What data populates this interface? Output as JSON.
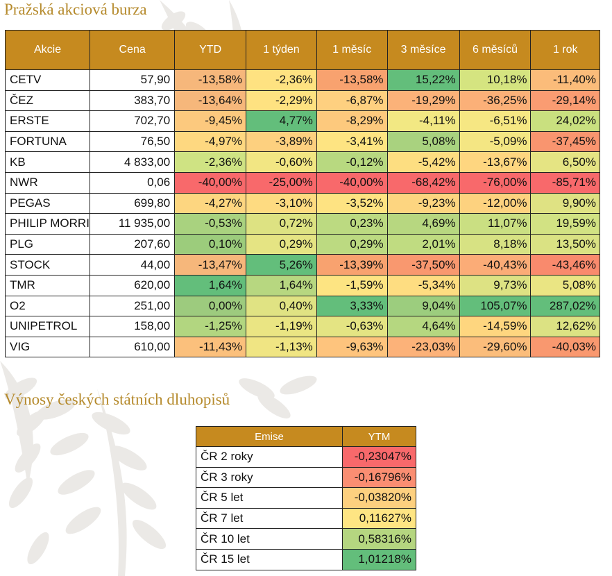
{
  "stocks": {
    "title": "Pražská akciová burza",
    "headers": [
      "Akcie",
      "Cena",
      "YTD",
      "1 týden",
      "1 měsíc",
      "3 měsíce",
      "6 měsíců",
      "1 rok"
    ],
    "rows": [
      {
        "name": "CETV",
        "price": "57,90",
        "cells": [
          {
            "v": "-13,58%",
            "c": "#f6b77b"
          },
          {
            "v": "-2,36%",
            "c": "#fee281"
          },
          {
            "v": "-13,58%",
            "c": "#f8a26f"
          },
          {
            "v": "15,22%",
            "c": "#63be7b"
          },
          {
            "v": "10,18%",
            "c": "#d5e480"
          },
          {
            "v": "-11,40%",
            "c": "#fbbc7a"
          }
        ]
      },
      {
        "name": "ČEZ",
        "price": "383,70",
        "cells": [
          {
            "v": "-13,64%",
            "c": "#f6b77b"
          },
          {
            "v": "-2,29%",
            "c": "#fee281"
          },
          {
            "v": "-6,87%",
            "c": "#fed080"
          },
          {
            "v": "-19,29%",
            "c": "#fbb279"
          },
          {
            "v": "-36,25%",
            "c": "#fbb078"
          },
          {
            "v": "-29,14%",
            "c": "#fa9c72"
          }
        ]
      },
      {
        "name": "ERSTE",
        "price": "702,70",
        "cells": [
          {
            "v": "-9,45%",
            "c": "#fcc97e"
          },
          {
            "v": "4,77%",
            "c": "#63be7b"
          },
          {
            "v": "-8,29%",
            "c": "#fdc97d"
          },
          {
            "v": "-4,11%",
            "c": "#f2e883"
          },
          {
            "v": "-6,51%",
            "c": "#f6e783"
          },
          {
            "v": "24,02%",
            "c": "#c9e07f"
          }
        ]
      },
      {
        "name": "FORTUNA",
        "price": "76,50",
        "cells": [
          {
            "v": "-4,97%",
            "c": "#fed880"
          },
          {
            "v": "-3,89%",
            "c": "#fdd07f"
          },
          {
            "v": "-3,41%",
            "c": "#fee482"
          },
          {
            "v": "5,08%",
            "c": "#a9d27f"
          },
          {
            "v": "-5,09%",
            "c": "#f4e683"
          },
          {
            "v": "-37,45%",
            "c": "#f9956f"
          }
        ]
      },
      {
        "name": "KB",
        "price": "4 833,00",
        "cells": [
          {
            "v": "-2,36%",
            "c": "#cfe383"
          },
          {
            "v": "-0,60%",
            "c": "#f2e683"
          },
          {
            "v": "-0,12%",
            "c": "#b8d980"
          },
          {
            "v": "-5,42%",
            "c": "#fdde81"
          },
          {
            "v": "-13,67%",
            "c": "#fed680"
          },
          {
            "v": "6,50%",
            "c": "#e5e483"
          }
        ]
      },
      {
        "name": "NWR",
        "price": "0,06",
        "cells": [
          {
            "v": "-40,00%",
            "c": "#f8696b"
          },
          {
            "v": "-25,00%",
            "c": "#f8696b"
          },
          {
            "v": "-40,00%",
            "c": "#f8696b"
          },
          {
            "v": "-68,42%",
            "c": "#f8696b"
          },
          {
            "v": "-76,00%",
            "c": "#f8696b"
          },
          {
            "v": "-85,71%",
            "c": "#f8696b"
          }
        ]
      },
      {
        "name": "PEGAS",
        "price": "699,80",
        "cells": [
          {
            "v": "-4,27%",
            "c": "#fdd680"
          },
          {
            "v": "-3,10%",
            "c": "#fedb81"
          },
          {
            "v": "-3,52%",
            "c": "#fee382"
          },
          {
            "v": "-9,23%",
            "c": "#fdd580"
          },
          {
            "v": "-12,00%",
            "c": "#fdd27f"
          },
          {
            "v": "9,90%",
            "c": "#dfe283"
          }
        ]
      },
      {
        "name": "PHILIP MORRIS",
        "price": "11 935,00",
        "cells": [
          {
            "v": "-0,53%",
            "c": "#a9d27f"
          },
          {
            "v": "0,72%",
            "c": "#dde282"
          },
          {
            "v": "0,23%",
            "c": "#bcda81"
          },
          {
            "v": "4,69%",
            "c": "#b7d780"
          },
          {
            "v": "11,07%",
            "c": "#cadf82"
          },
          {
            "v": "19,59%",
            "c": "#d2e283"
          }
        ]
      },
      {
        "name": "PLG",
        "price": "207,60",
        "cells": [
          {
            "v": "0,10%",
            "c": "#9ccc7c"
          },
          {
            "v": "0,29%",
            "c": "#e5e483"
          },
          {
            "v": "0,29%",
            "c": "#bcda81"
          },
          {
            "v": "2,01%",
            "c": "#c0dc81"
          },
          {
            "v": "8,18%",
            "c": "#d7e283"
          },
          {
            "v": "13,50%",
            "c": "#dae283"
          }
        ]
      },
      {
        "name": "STOCK",
        "price": "44,00",
        "cells": [
          {
            "v": "-13,47%",
            "c": "#f6b77b"
          },
          {
            "v": "5,26%",
            "c": "#63be7b"
          },
          {
            "v": "-13,39%",
            "c": "#f8a26f"
          },
          {
            "v": "-37,50%",
            "c": "#f9986f"
          },
          {
            "v": "-40,43%",
            "c": "#fbac77"
          },
          {
            "v": "-43,46%",
            "c": "#f98a6d"
          }
        ]
      },
      {
        "name": "TMR",
        "price": "620,00",
        "cells": [
          {
            "v": "1,64%",
            "c": "#63be7b"
          },
          {
            "v": "1,64%",
            "c": "#b7d780"
          },
          {
            "v": "-1,59%",
            "c": "#fde482"
          },
          {
            "v": "-5,34%",
            "c": "#fedd81"
          },
          {
            "v": "9,73%",
            "c": "#dde283"
          },
          {
            "v": "5,08%",
            "c": "#eae583"
          }
        ]
      },
      {
        "name": "O2",
        "price": "251,00",
        "cells": [
          {
            "v": "0,00%",
            "c": "#9dcb7e"
          },
          {
            "v": "0,40%",
            "c": "#e0e383"
          },
          {
            "v": "3,33%",
            "c": "#63be7b"
          },
          {
            "v": "9,04%",
            "c": "#9ccd7e"
          },
          {
            "v": "105,07%",
            "c": "#63be7b"
          },
          {
            "v": "287,02%",
            "c": "#63be7b"
          }
        ]
      },
      {
        "name": "UNIPETROL",
        "price": "158,00",
        "cells": [
          {
            "v": "-1,25%",
            "c": "#b2d680"
          },
          {
            "v": "-1,19%",
            "c": "#eae583"
          },
          {
            "v": "-0,63%",
            "c": "#e4e483"
          },
          {
            "v": "4,64%",
            "c": "#b5d780"
          },
          {
            "v": "-14,59%",
            "c": "#fed67f"
          },
          {
            "v": "12,62%",
            "c": "#dce283"
          }
        ]
      },
      {
        "name": "VIG",
        "price": "610,00",
        "cells": [
          {
            "v": "-11,43%",
            "c": "#fbc07c"
          },
          {
            "v": "-1,13%",
            "c": "#f0e583"
          },
          {
            "v": "-9,63%",
            "c": "#fec47d"
          },
          {
            "v": "-23,03%",
            "c": "#fcb279"
          },
          {
            "v": "-29,60%",
            "c": "#fbbd7b"
          },
          {
            "v": "-40,03%",
            "c": "#f9986f"
          }
        ]
      }
    ]
  },
  "bonds": {
    "title": "Výnosy českých státních dluhopisů",
    "headers": [
      "Emise",
      "YTM"
    ],
    "rows": [
      {
        "emise": "ČR 2 roky",
        "ytm": "-0,23047%",
        "c": "#f8696b"
      },
      {
        "emise": "ČR 3 roky",
        "ytm": "-0,16796%",
        "c": "#fa8e72"
      },
      {
        "emise": "ČR 5 let",
        "ytm": "-0,03820%",
        "c": "#fdd07f"
      },
      {
        "emise": "ČR 7 let",
        "ytm": "0,11627%",
        "c": "#fee583"
      },
      {
        "emise": "ČR 10 let",
        "ytm": "0,58316%",
        "c": "#b5d680"
      },
      {
        "emise": "ČR 15 let",
        "ytm": "1,01218%",
        "c": "#63be7b"
      }
    ]
  },
  "colors": {
    "header_bg": "#c68a1f",
    "header_text": "#ffffff",
    "title_color": "#b58a2c",
    "decoration": "#e8e6e3"
  }
}
